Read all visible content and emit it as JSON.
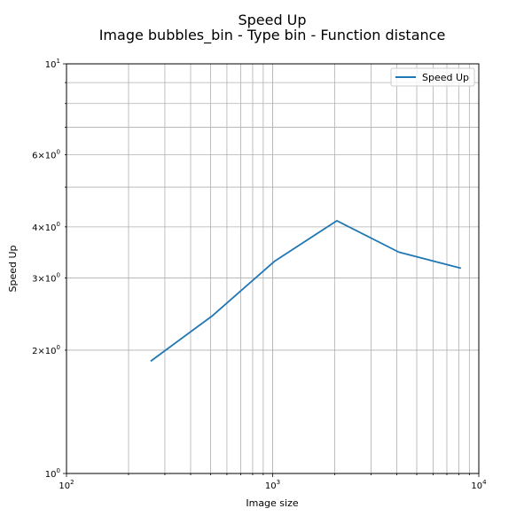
{
  "chart_data": {
    "type": "line",
    "title": "Speed Up",
    "subtitle": "Image bubbles_bin - Type bin - Function distance",
    "xlabel": "Image size",
    "ylabel": "Speed Up",
    "xscale": "log",
    "yscale": "log",
    "xlim": [
      100,
      10000
    ],
    "ylim": [
      1,
      10
    ],
    "grid": "on (major and minor)",
    "legend_position": "top-right",
    "x_tick_labels": [
      "10^2",
      "10^3",
      "10^4"
    ],
    "y_tick_labels": [
      "10^0",
      "2×10^0",
      "3×10^0",
      "4×10^0",
      "6×10^0",
      "10^1"
    ],
    "series": [
      {
        "name": "Speed Up",
        "color": "#1f77b4",
        "x": [
          256,
          512,
          1024,
          2048,
          4096,
          8192
        ],
        "y": [
          1.88,
          2.43,
          3.3,
          4.14,
          3.47,
          3.17
        ]
      }
    ]
  }
}
